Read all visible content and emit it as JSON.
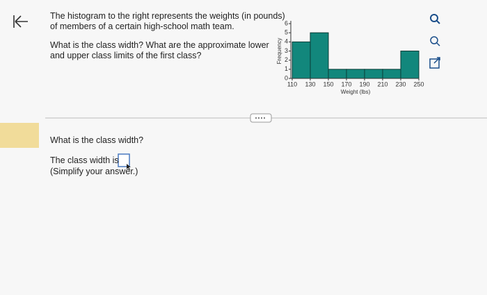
{
  "question": {
    "intro": [
      "The histogram to the right represents the weights (in pounds)",
      "of members of a certain high-school math team."
    ],
    "ask": [
      "What is the class width? What are the approximate lower",
      "and upper class limits of the first class?"
    ]
  },
  "chart_data": {
    "type": "histogram",
    "ylabel": "Frequency",
    "xlabel": "Weight (lbs)",
    "bins": [
      110,
      130,
      150,
      170,
      190,
      210,
      230,
      250
    ],
    "values": [
      4,
      5,
      1,
      1,
      1,
      1,
      3
    ],
    "color": "#12877c",
    "xlim": [
      110,
      250
    ],
    "ylim": [
      0,
      6
    ],
    "xticks": [
      110,
      130,
      150,
      170,
      190,
      210,
      230,
      250
    ],
    "yticks": [
      0,
      1,
      2,
      3,
      4,
      5,
      6
    ]
  },
  "part": {
    "prompt": "What is the class width?",
    "answer_label": "The class width is",
    "hint": "(Simplify your answer.)"
  }
}
